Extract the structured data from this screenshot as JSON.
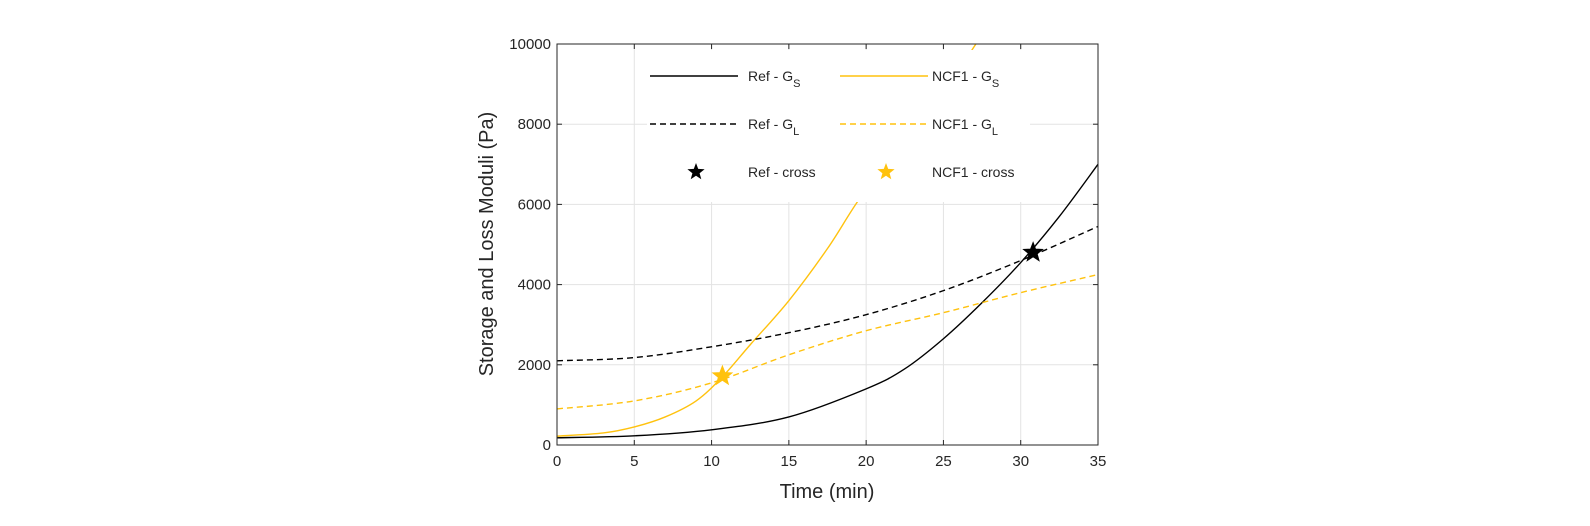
{
  "chart_data": {
    "type": "line",
    "title": "",
    "xlabel": "Time (min)",
    "ylabel": "Storage and Loss Moduli (Pa)",
    "xlim": [
      0,
      35
    ],
    "ylim": [
      0,
      10000
    ],
    "xticks": [
      0,
      5,
      10,
      15,
      20,
      25,
      30,
      35
    ],
    "yticks": [
      0,
      2000,
      4000,
      6000,
      8000,
      10000
    ],
    "grid": true,
    "legend_placement": "top-center",
    "series": [
      {
        "name": "Ref - G",
        "sub": "S",
        "color": "#000000",
        "dash": "solid",
        "x": [
          0,
          5,
          10,
          15,
          20,
          22.5,
          25,
          27.5,
          30,
          32.5,
          35
        ],
        "y": [
          180,
          230,
          380,
          700,
          1400,
          1900,
          2650,
          3550,
          4550,
          5700,
          7000
        ]
      },
      {
        "name": "NCF1 - G",
        "sub": "S",
        "color": "#FFC20E",
        "dash": "solid",
        "x": [
          0,
          3,
          5,
          7,
          9,
          10.7,
          12.5,
          15,
          17.5,
          19.5,
          22,
          25,
          27.1
        ],
        "y": [
          220,
          300,
          450,
          700,
          1100,
          1700,
          2500,
          3600,
          4900,
          6100,
          7400,
          8800,
          10000
        ]
      },
      {
        "name": "Ref - G",
        "sub": "L",
        "color": "#000000",
        "dash": "dashed",
        "x": [
          0,
          5,
          10,
          15,
          20,
          25,
          30,
          35
        ],
        "y": [
          2100,
          2180,
          2450,
          2800,
          3250,
          3850,
          4600,
          5450
        ]
      },
      {
        "name": "NCF1 - G",
        "sub": "L",
        "color": "#FFC20E",
        "dash": "dashed",
        "x": [
          0,
          5,
          10,
          15,
          20,
          25,
          30,
          35
        ],
        "y": [
          900,
          1100,
          1550,
          2250,
          2850,
          3300,
          3800,
          4250
        ]
      },
      {
        "name": "Ref - cross",
        "sub": "",
        "color": "#000000",
        "marker": "star",
        "x": [
          30.8
        ],
        "y": [
          4800
        ]
      },
      {
        "name": "NCF1 - cross",
        "sub": "",
        "color": "#FFC20E",
        "marker": "star",
        "x": [
          10.7
        ],
        "y": [
          1720
        ]
      }
    ]
  }
}
